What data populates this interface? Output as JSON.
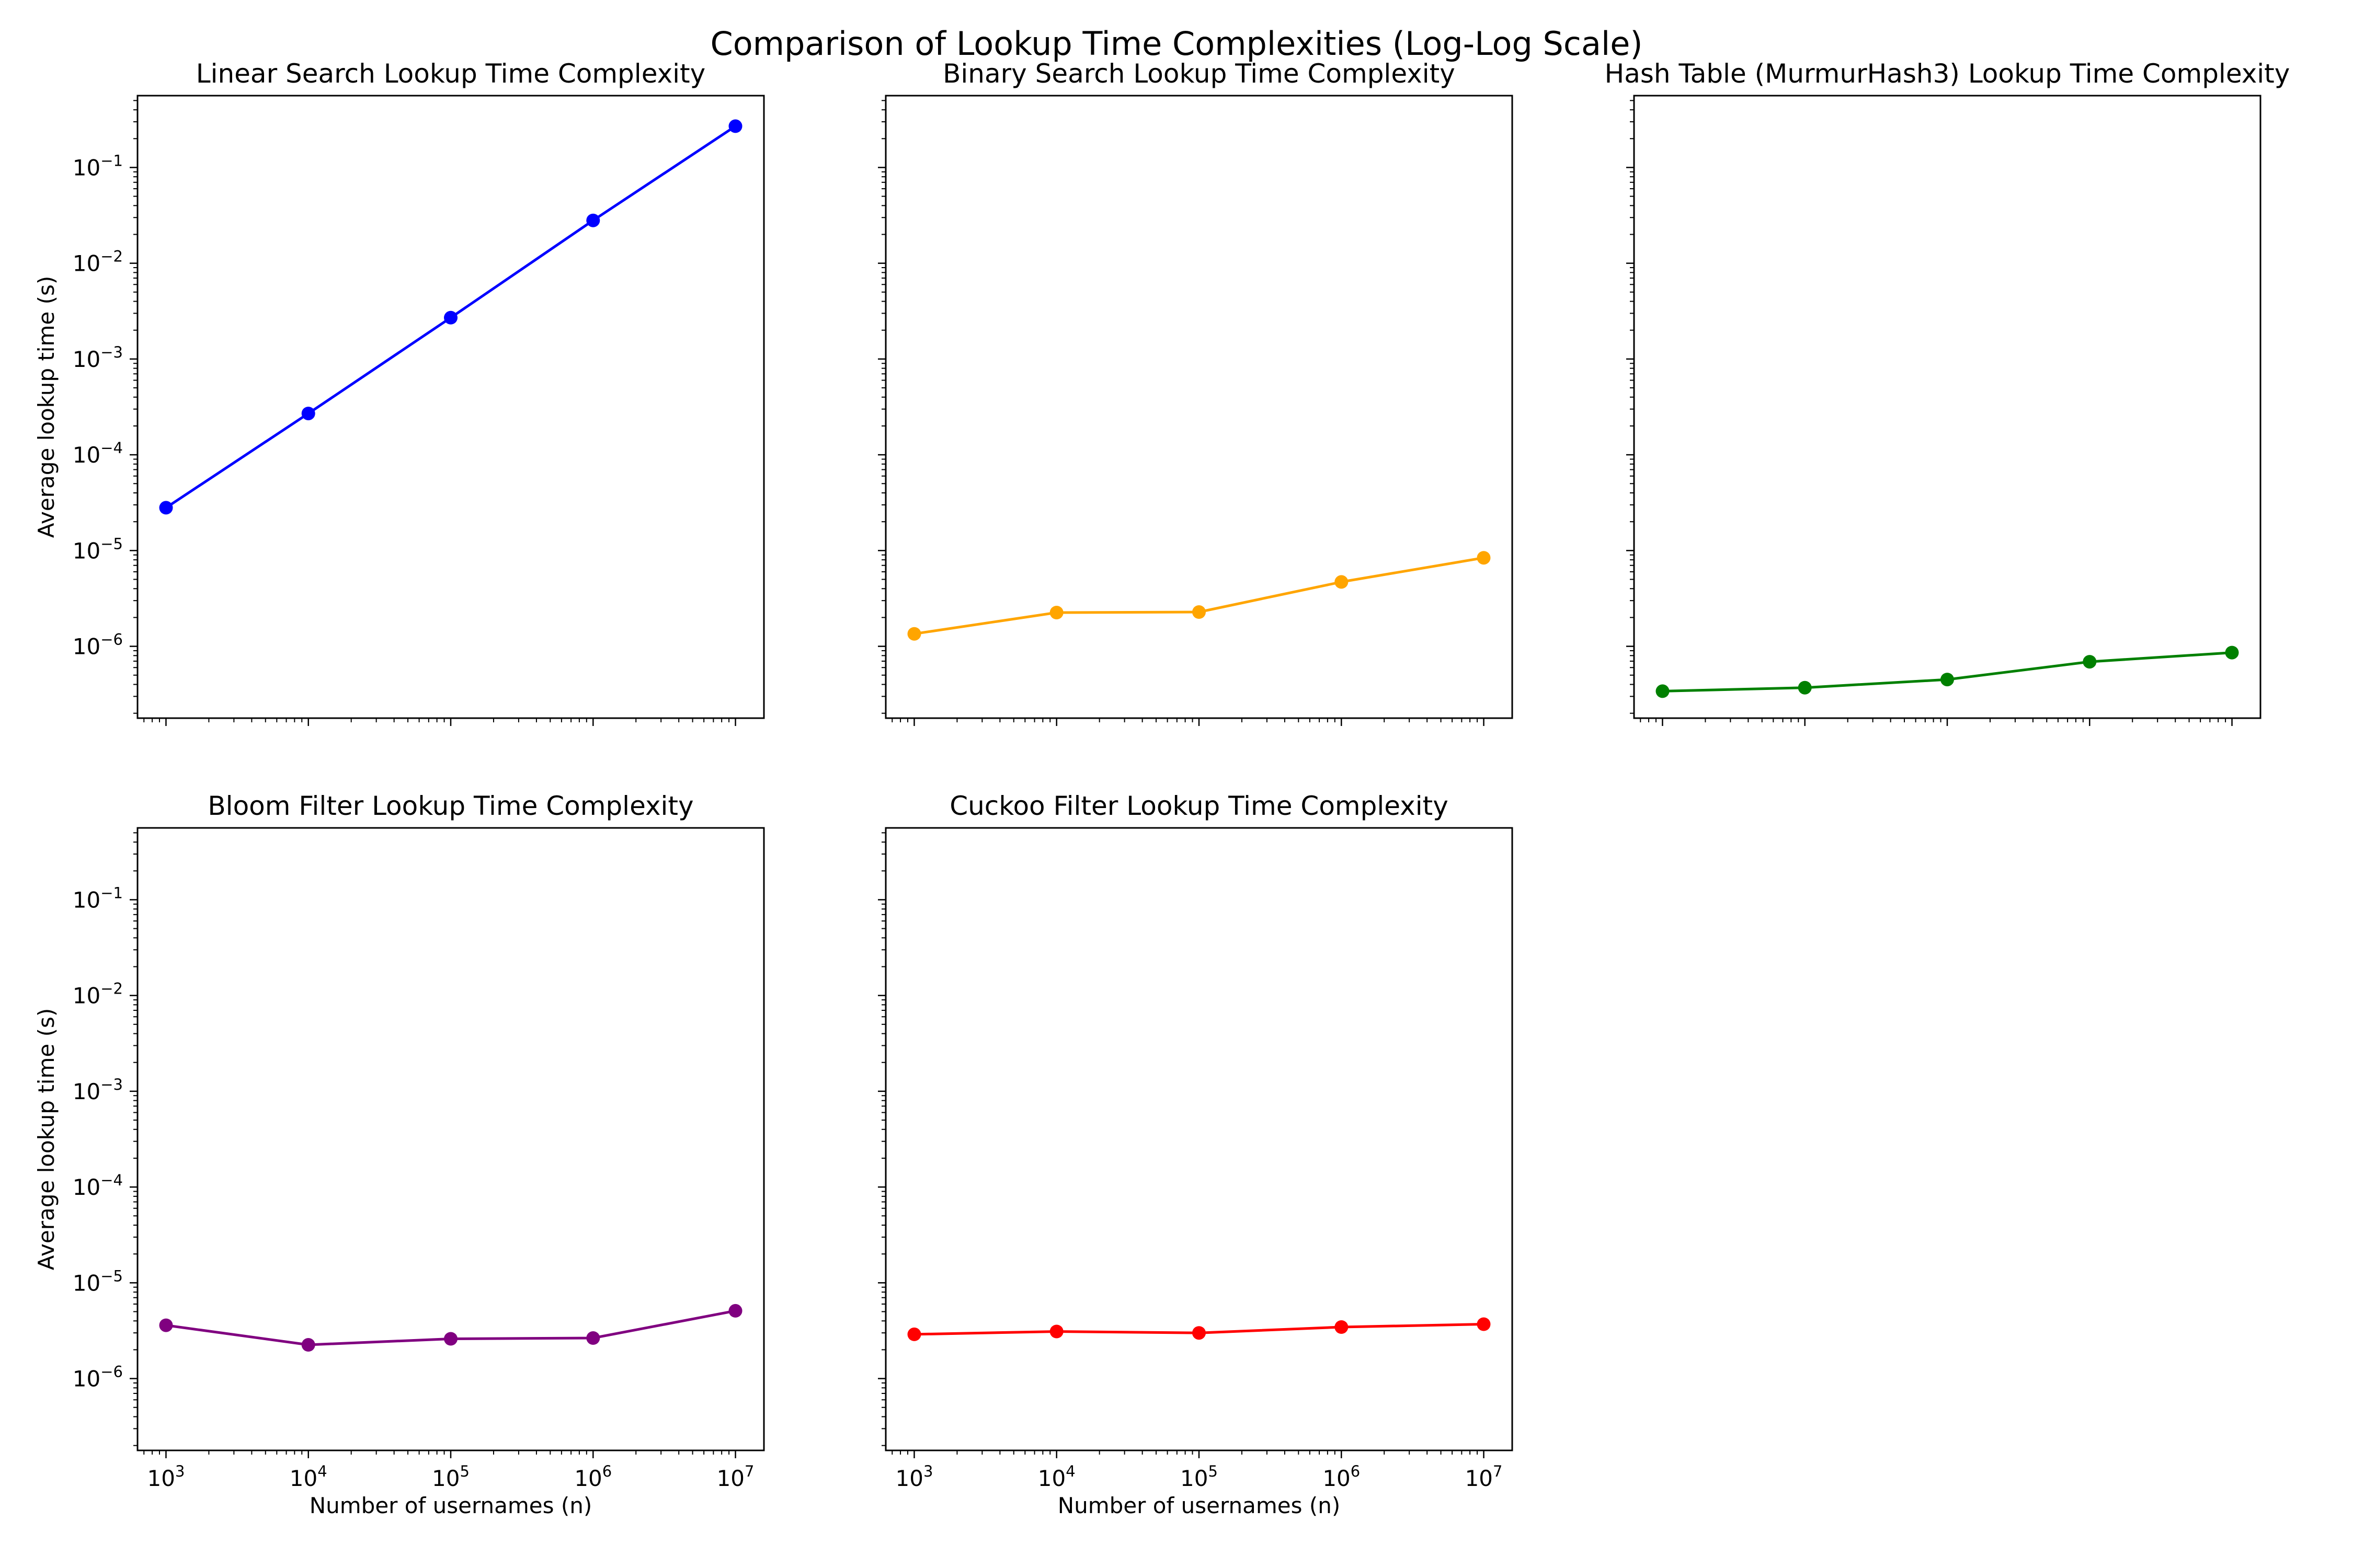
{
  "figure_title": "Comparison of Lookup Time Complexities (Log-Log Scale)",
  "chart_data": [
    {
      "type": "line",
      "title": "Linear Search Lookup Time Complexity",
      "xlabel": "",
      "ylabel": "Average lookup time (s)",
      "x_scale": "log",
      "y_scale": "log",
      "x": [
        1000,
        10000,
        100000,
        1000000,
        10000000
      ],
      "x_tick_labels": [],
      "y_tick_labels": [
        {
          "base": "10",
          "exp": "−6"
        },
        {
          "base": "10",
          "exp": "−5"
        },
        {
          "base": "10",
          "exp": "−4"
        },
        {
          "base": "10",
          "exp": "−3"
        },
        {
          "base": "10",
          "exp": "−2"
        },
        {
          "base": "10",
          "exp": "−1"
        }
      ],
      "series": [
        {
          "color": "#0000ff",
          "marker": "circle",
          "values": [
            2.8e-05,
            0.00027,
            0.0027,
            0.028,
            0.27
          ]
        }
      ],
      "grid": false
    },
    {
      "type": "line",
      "title": "Binary Search Lookup Time Complexity",
      "xlabel": "",
      "ylabel": "",
      "x_scale": "log",
      "y_scale": "log",
      "x": [
        1000,
        10000,
        100000,
        1000000,
        10000000
      ],
      "x_tick_labels": [],
      "y_tick_labels": [],
      "series": [
        {
          "color": "#ffa500",
          "marker": "circle",
          "values": [
            1.35e-06,
            2.25e-06,
            2.28e-06,
            4.7e-06,
            8.4e-06
          ]
        }
      ],
      "grid": false
    },
    {
      "type": "line",
      "title": "Hash Table (MurmurHash3) Lookup Time Complexity",
      "xlabel": "",
      "ylabel": "",
      "x_scale": "log",
      "y_scale": "log",
      "x": [
        1000,
        10000,
        100000,
        1000000,
        10000000
      ],
      "x_tick_labels": [],
      "y_tick_labels": [],
      "series": [
        {
          "color": "#008000",
          "marker": "circle",
          "values": [
            3.4e-07,
            3.7e-07,
            4.5e-07,
            6.9e-07,
            8.6e-07
          ]
        }
      ],
      "grid": false
    },
    {
      "type": "line",
      "title": "Bloom Filter Lookup Time Complexity",
      "xlabel": "Number of usernames (n)",
      "ylabel": "Average lookup time (s)",
      "x_scale": "log",
      "y_scale": "log",
      "x": [
        1000,
        10000,
        100000,
        1000000,
        10000000
      ],
      "x_tick_labels": [
        {
          "base": "10",
          "exp": "3"
        },
        {
          "base": "10",
          "exp": "4"
        },
        {
          "base": "10",
          "exp": "5"
        },
        {
          "base": "10",
          "exp": "6"
        },
        {
          "base": "10",
          "exp": "7"
        }
      ],
      "y_tick_labels": [
        {
          "base": "10",
          "exp": "−6"
        },
        {
          "base": "10",
          "exp": "−5"
        },
        {
          "base": "10",
          "exp": "−4"
        },
        {
          "base": "10",
          "exp": "−3"
        },
        {
          "base": "10",
          "exp": "−2"
        },
        {
          "base": "10",
          "exp": "−1"
        }
      ],
      "series": [
        {
          "color": "#800080",
          "marker": "circle",
          "values": [
            3.6e-06,
            2.25e-06,
            2.6e-06,
            2.65e-06,
            5.1e-06
          ]
        }
      ],
      "grid": false
    },
    {
      "type": "line",
      "title": "Cuckoo Filter Lookup Time Complexity",
      "xlabel": "Number of usernames (n)",
      "ylabel": "",
      "x_scale": "log",
      "y_scale": "log",
      "x": [
        1000,
        10000,
        100000,
        1000000,
        10000000
      ],
      "x_tick_labels": [
        {
          "base": "10",
          "exp": "3"
        },
        {
          "base": "10",
          "exp": "4"
        },
        {
          "base": "10",
          "exp": "5"
        },
        {
          "base": "10",
          "exp": "6"
        },
        {
          "base": "10",
          "exp": "7"
        }
      ],
      "y_tick_labels": [],
      "series": [
        {
          "color": "#ff0000",
          "marker": "circle",
          "values": [
            2.9e-06,
            3.1e-06,
            3e-06,
            3.45e-06,
            3.7e-06
          ]
        }
      ],
      "grid": false
    }
  ]
}
